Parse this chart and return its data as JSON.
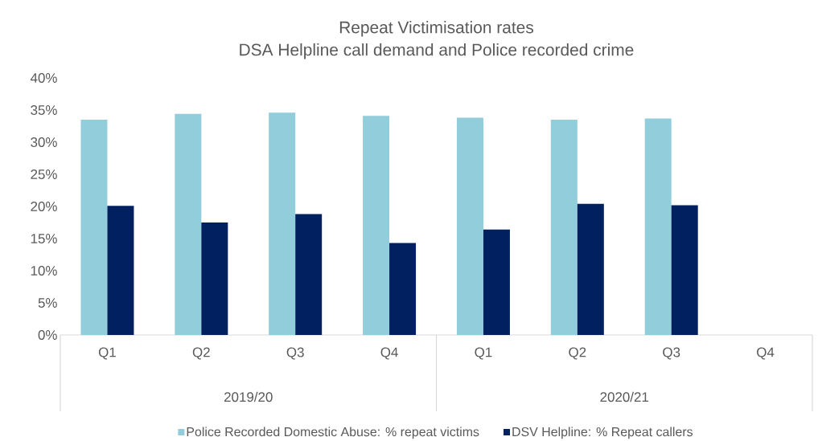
{
  "chart_data": {
    "type": "bar",
    "title": "Repeat Victimisation rates",
    "subtitle": "DSA Helpline call demand and Police recorded crime",
    "categories": [
      "Q1",
      "Q2",
      "Q3",
      "Q4",
      "Q1",
      "Q2",
      "Q3",
      "Q4"
    ],
    "series": [
      {
        "name": "Police Recorded Domestic Abuse: % repeat victims",
        "color": "#92cddc",
        "values": [
          33.5,
          34.4,
          34.6,
          34.1,
          33.8,
          33.5,
          33.7,
          null
        ]
      },
      {
        "name": "DSV Helpline: % Repeat callers",
        "color": "#002060",
        "values": [
          20.1,
          17.5,
          18.8,
          14.3,
          16.4,
          20.4,
          20.2,
          null
        ]
      }
    ],
    "ylim": [
      0,
      40
    ],
    "yticks": [
      {
        "value": 0,
        "label": "0%"
      },
      {
        "value": 5,
        "label": "5%"
      },
      {
        "value": 10,
        "label": "10%"
      },
      {
        "value": 15,
        "label": "15%"
      },
      {
        "value": 20,
        "label": "20%"
      },
      {
        "value": 25,
        "label": "25%"
      },
      {
        "value": 30,
        "label": "30%"
      },
      {
        "value": 35,
        "label": "35%"
      },
      {
        "value": 40,
        "label": "40%"
      }
    ],
    "annotations": [
      "2019/20",
      "2020/21"
    ],
    "legend": "bottom"
  }
}
